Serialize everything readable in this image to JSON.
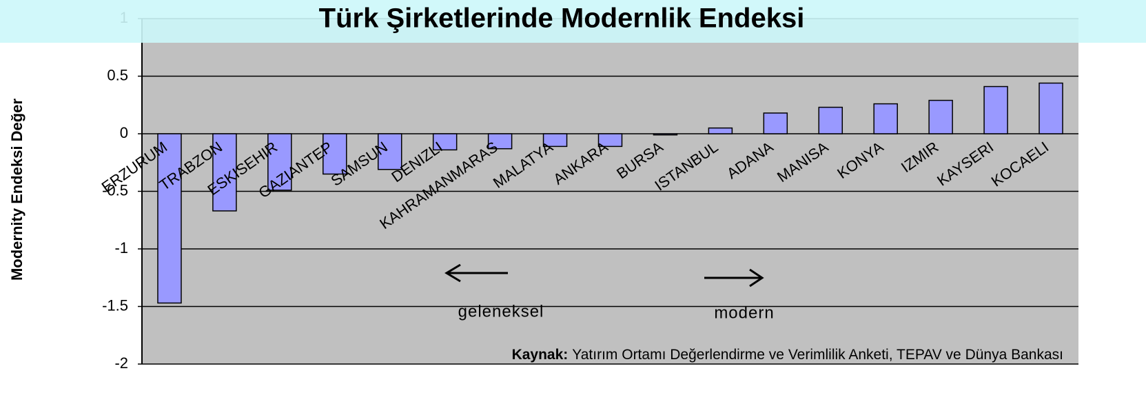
{
  "chart_data": {
    "type": "bar",
    "title": "Türk Şirketlerinde Modernlik Endeksi",
    "ylabel": "Modernity Endeksi Değer",
    "categories": [
      "ERZURUM",
      "TRABZON",
      "ESKISEHIR",
      "GAZIANTEP",
      "SAMSUN",
      "DENIZLI",
      "KAHRAMANMARAS",
      "MALATYA",
      "ANKARA",
      "BURSA",
      "ISTANBUL",
      "ADANA",
      "MANISA",
      "KONYA",
      "IZMIR",
      "KAYSERI",
      "KOCAELI"
    ],
    "values": [
      -1.47,
      -0.67,
      -0.49,
      -0.35,
      -0.31,
      -0.14,
      -0.13,
      -0.11,
      -0.11,
      -0.01,
      0.05,
      0.18,
      0.23,
      0.26,
      0.29,
      0.41,
      0.44
    ],
    "color": "#9999ff",
    "ylim": [
      -2,
      1
    ],
    "yticks": [
      1,
      0.5,
      0,
      -0.5,
      -1,
      -1.5,
      -2
    ],
    "grid": true,
    "annotations": [
      "geleneksel",
      "modern"
    ],
    "source_label": "Kaynak:",
    "source_text": "Yatırım Ortamı Değerlendirme ve Verimlilik Anketi, TEPAV  ve Dünya Bankası"
  }
}
